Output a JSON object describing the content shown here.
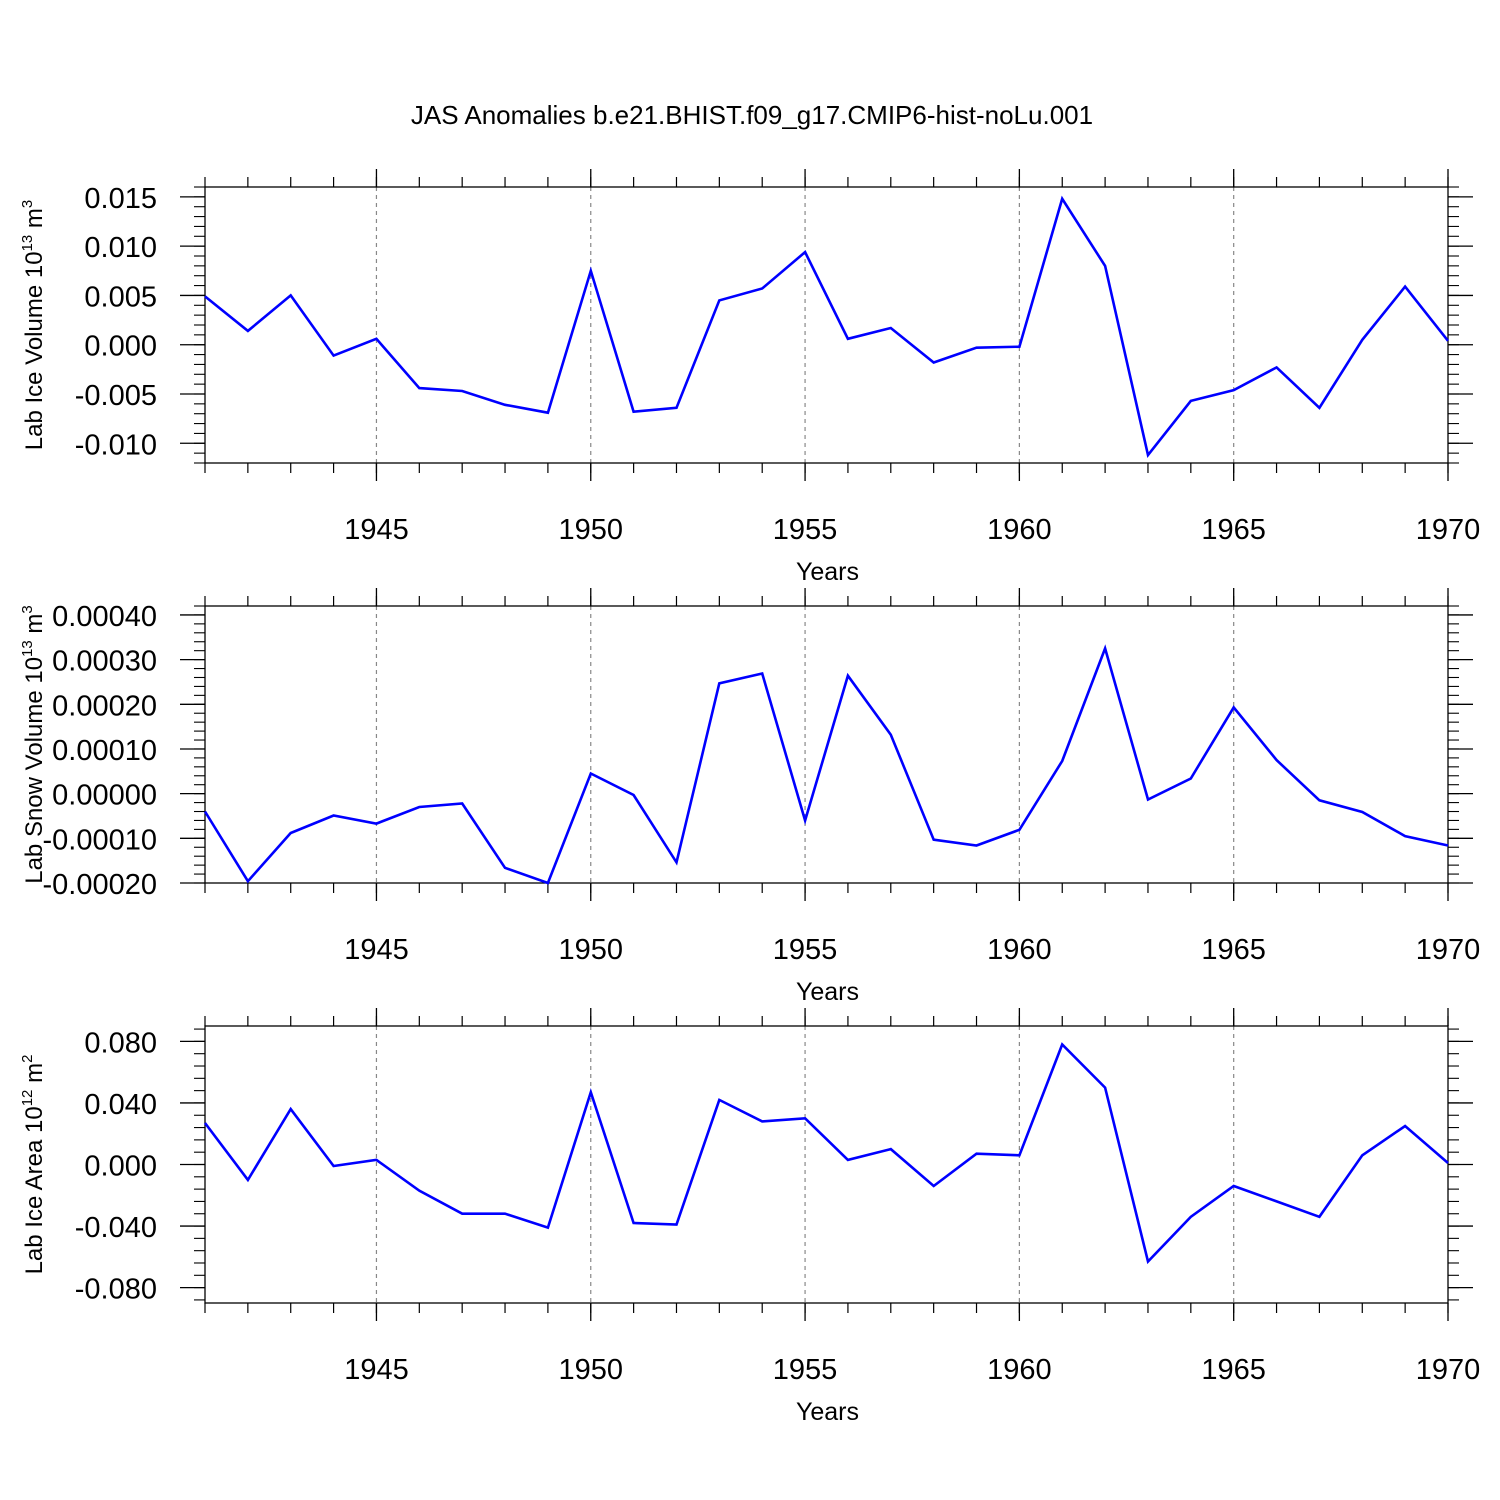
{
  "figure": {
    "title": "JAS Anomalies b.e21.BHIST.f09_g17.CMIP6-hist-noLu.001"
  },
  "style": {
    "line_color": "#0000ff",
    "axis_color": "#000000",
    "grid_color": "#888888"
  },
  "chart_data": [
    {
      "type": "line",
      "title": "",
      "xlabel": "Years",
      "ylabel": "Lab Ice Volume 10",
      "ylabel_exp": "13",
      "ylabel_unit": "m",
      "ylabel_unit_exp": "3",
      "xlim": [
        1941,
        1970
      ],
      "ylim": [
        -0.012,
        0.016
      ],
      "x_ticks": [
        1945,
        1950,
        1955,
        1960,
        1965,
        1970
      ],
      "x_tick_labels": [
        "1945",
        "1950",
        "1955",
        "1960",
        "1965",
        "1970"
      ],
      "y_ticks": [
        0.015,
        0.01,
        0.005,
        0.0,
        -0.005,
        -0.01
      ],
      "y_tick_labels": [
        "0.015",
        "0.010",
        "0.005",
        "0.000",
        "-0.005",
        "-0.010"
      ],
      "grid": "vertical dashed at labeled years",
      "x": [
        1941,
        1942,
        1943,
        1944,
        1945,
        1946,
        1947,
        1948,
        1949,
        1950,
        1951,
        1952,
        1953,
        1954,
        1955,
        1956,
        1957,
        1958,
        1959,
        1960,
        1961,
        1962,
        1963,
        1964,
        1965,
        1966,
        1967,
        1968,
        1969,
        1970
      ],
      "series": [
        {
          "values": [
            0.0049,
            0.0014,
            0.005,
            -0.0011,
            0.0006,
            -0.0044,
            -0.0047,
            -0.0061,
            -0.0069,
            0.0075,
            -0.0068,
            -0.0064,
            0.0045,
            0.0057,
            0.0094,
            0.0006,
            0.0017,
            -0.0018,
            -0.0003,
            -0.0002,
            0.0148,
            0.008,
            -0.0112,
            -0.0057,
            -0.0046,
            -0.0023,
            -0.0064,
            0.0005,
            0.0059,
            0.0004
          ]
        }
      ]
    },
    {
      "type": "line",
      "title": "",
      "xlabel": "Years",
      "ylabel": "Lab Snow Volume 10",
      "ylabel_exp": "13",
      "ylabel_unit": "m",
      "ylabel_unit_exp": "3",
      "xlim": [
        1941,
        1970
      ],
      "ylim": [
        -0.0002,
        0.00042
      ],
      "x_ticks": [
        1945,
        1950,
        1955,
        1960,
        1965,
        1970
      ],
      "x_tick_labels": [
        "1945",
        "1950",
        "1955",
        "1960",
        "1965",
        "1970"
      ],
      "y_ticks": [
        0.0004,
        0.0003,
        0.0002,
        0.0001,
        0.0,
        -0.0001,
        -0.0002
      ],
      "y_tick_labels": [
        "0.00040",
        "0.00030",
        "0.00020",
        "0.00010",
        "0.00000",
        "-0.00010",
        "-0.00020"
      ],
      "grid": "vertical dashed at labeled years",
      "x": [
        1941,
        1942,
        1943,
        1944,
        1945,
        1946,
        1947,
        1948,
        1949,
        1950,
        1951,
        1952,
        1953,
        1954,
        1955,
        1956,
        1957,
        1958,
        1959,
        1960,
        1961,
        1962,
        1963,
        1964,
        1965,
        1966,
        1967,
        1968,
        1969,
        1970
      ],
      "series": [
        {
          "values": [
            -4e-05,
            -0.000196,
            -8.8e-05,
            -4.9e-05,
            -6.7e-05,
            -3e-05,
            -2.2e-05,
            -0.000166,
            -0.0002,
            4.5e-05,
            -3e-06,
            -0.000154,
            0.000247,
            0.000269,
            -6e-05,
            0.000264,
            0.000132,
            -0.000103,
            -0.000116,
            -8.1e-05,
            7.3e-05,
            0.000325,
            -1.3e-05,
            3.4e-05,
            0.000193,
            7.5e-05,
            -1.5e-05,
            -4.1e-05,
            -9.5e-05,
            -0.000116
          ]
        }
      ]
    },
    {
      "type": "line",
      "title": "",
      "xlabel": "Years",
      "ylabel": "Lab Ice Area 10",
      "ylabel_exp": "12",
      "ylabel_unit": "m",
      "ylabel_unit_exp": "2",
      "xlim": [
        1941,
        1970
      ],
      "ylim": [
        -0.09,
        0.09
      ],
      "x_ticks": [
        1945,
        1950,
        1955,
        1960,
        1965,
        1970
      ],
      "x_tick_labels": [
        "1945",
        "1950",
        "1955",
        "1960",
        "1965",
        "1970"
      ],
      "y_ticks": [
        0.08,
        0.04,
        0.0,
        -0.04,
        -0.08
      ],
      "y_tick_labels": [
        "0.080",
        "0.040",
        "0.000",
        "-0.040",
        "-0.080"
      ],
      "grid": "vertical dashed at labeled years",
      "x": [
        1941,
        1942,
        1943,
        1944,
        1945,
        1946,
        1947,
        1948,
        1949,
        1950,
        1951,
        1952,
        1953,
        1954,
        1955,
        1956,
        1957,
        1958,
        1959,
        1960,
        1961,
        1962,
        1963,
        1964,
        1965,
        1966,
        1967,
        1968,
        1969,
        1970
      ],
      "series": [
        {
          "values": [
            0.027,
            -0.01,
            0.036,
            -0.001,
            0.003,
            -0.017,
            -0.032,
            -0.032,
            -0.041,
            0.047,
            -0.038,
            -0.039,
            0.042,
            0.028,
            0.03,
            0.003,
            0.01,
            -0.014,
            0.007,
            0.006,
            0.078,
            0.05,
            -0.063,
            -0.034,
            -0.014,
            -0.024,
            -0.034,
            0.006,
            0.025,
            0.001
          ]
        }
      ]
    }
  ]
}
